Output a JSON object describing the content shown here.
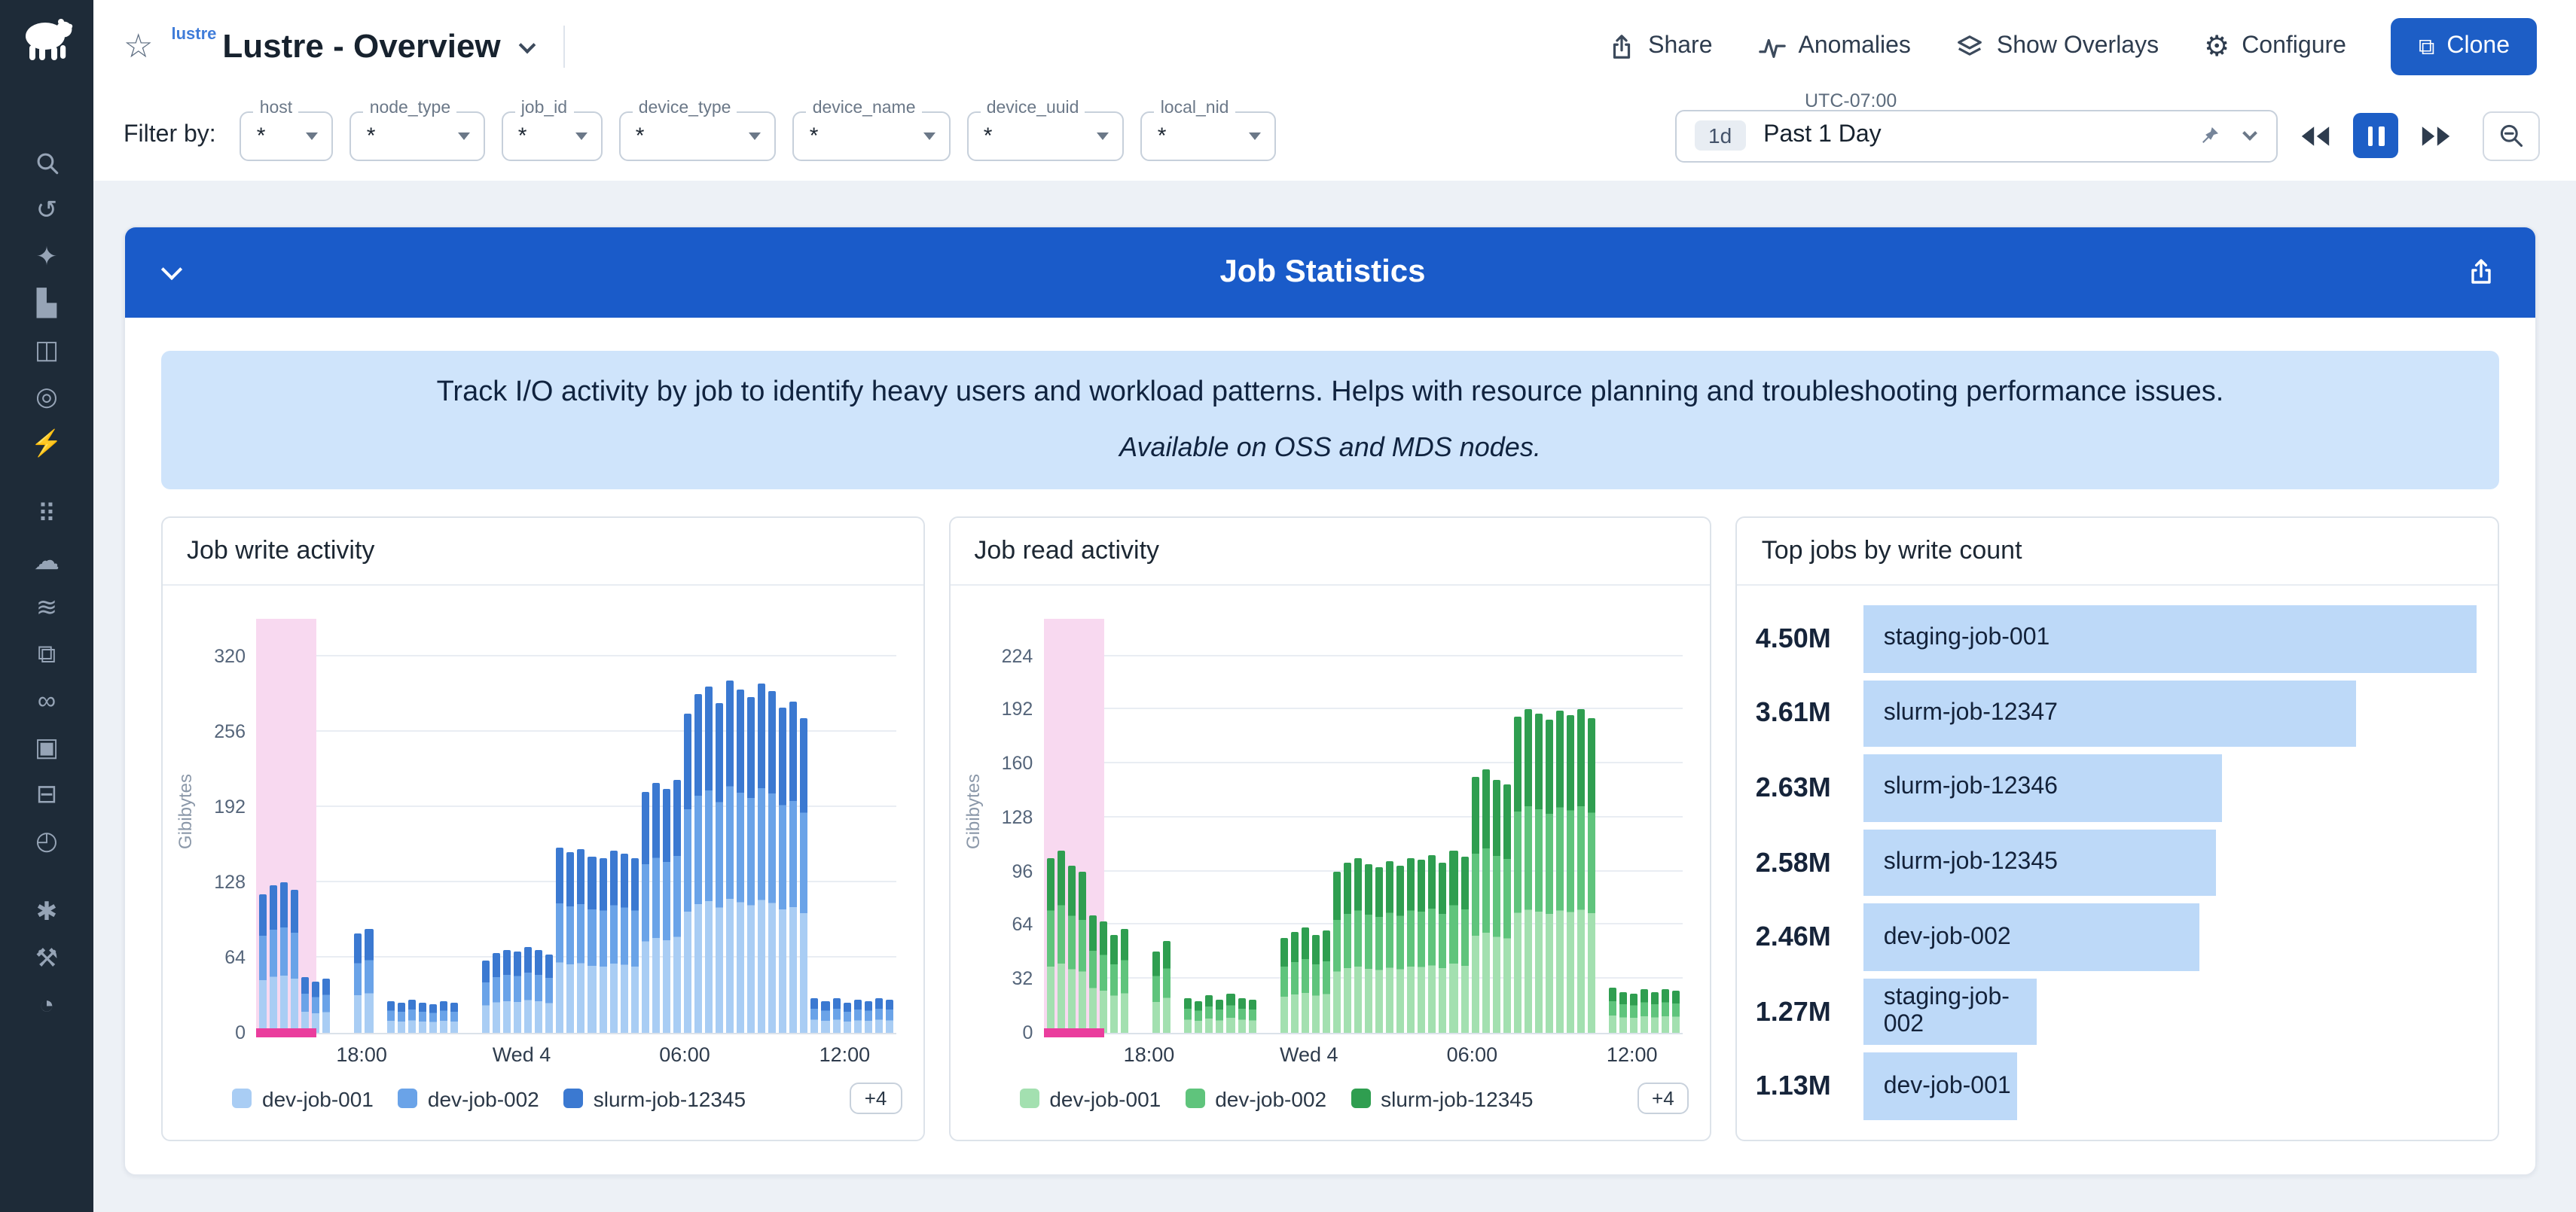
{
  "app": {
    "title": "Lustre - Overview",
    "collection": "lustre"
  },
  "icons": {
    "star": "☆",
    "gear": "⚙",
    "clone": "⧉"
  },
  "topbar": {
    "share": "Share",
    "anomalies": "Anomalies",
    "overlays": "Show Overlays",
    "configure": "Configure",
    "clone": "Clone"
  },
  "sidebar": {
    "icons": [
      {
        "name": "search-icon",
        "glyph": ""
      },
      {
        "name": "history-icon",
        "glyph": "↺"
      },
      {
        "name": "ai-sparkles-icon",
        "glyph": "✦"
      },
      {
        "name": "charts-icon",
        "glyph": "▙"
      },
      {
        "name": "dashboards-icon",
        "glyph": "◫"
      },
      {
        "name": "radar-icon",
        "glyph": "◎"
      },
      {
        "name": "alerts-icon",
        "glyph": "⚡"
      },
      {
        "name": "nodes-icon",
        "glyph": "⠿"
      },
      {
        "name": "cloud-icon",
        "glyph": "☁"
      },
      {
        "name": "streams-icon",
        "glyph": "≋"
      },
      {
        "name": "windows-icon",
        "glyph": "⧉"
      },
      {
        "name": "integrations-icon",
        "glyph": "∞"
      },
      {
        "name": "packages-icon",
        "glyph": "▣"
      },
      {
        "name": "database-icon",
        "glyph": "⊟"
      },
      {
        "name": "scheduler-icon",
        "glyph": "◴"
      },
      {
        "name": "bug-icon",
        "glyph": "✱"
      },
      {
        "name": "tools-icon",
        "glyph": "⚒"
      },
      {
        "name": "gauge-icon",
        "glyph": "◔"
      }
    ]
  },
  "filters": {
    "label": "Filter by:",
    "fields": [
      {
        "name": "host",
        "value": "*"
      },
      {
        "name": "node_type",
        "value": "*"
      },
      {
        "name": "job_id",
        "value": "*"
      },
      {
        "name": "device_type",
        "value": "*"
      },
      {
        "name": "device_name",
        "value": "*"
      },
      {
        "name": "device_uuid",
        "value": "*"
      },
      {
        "name": "local_nid",
        "value": "*"
      }
    ]
  },
  "timebar": {
    "timezone": "UTC-07:00",
    "badge": "1d",
    "label": "Past 1 Day"
  },
  "section": {
    "title": "Job Statistics",
    "description": "Track I/O activity by job to identify heavy users and workload patterns. Helps with resource planning and troubleshooting performance issues.",
    "note": "Available on OSS and MDS nodes."
  },
  "colors": {
    "accent": "#1d5ec6",
    "header": "#1a5bc9",
    "banner": "#cfe4fb"
  },
  "chart_data": [
    {
      "type": "bar",
      "title": "Job write activity",
      "ylabel": "Gibibytes",
      "ylim": [
        0,
        352
      ],
      "yticks": [
        0,
        64,
        128,
        192,
        256,
        320
      ],
      "xticks": [
        {
          "label": "18:00",
          "pos": 16.5
        },
        {
          "label": "Wed 4",
          "pos": 41.5
        },
        {
          "label": "06:00",
          "pos": 67
        },
        {
          "label": "12:00",
          "pos": 92
        }
      ],
      "series_legend": [
        "dev-job-001",
        "dev-job-002",
        "slurm-job-12345"
      ],
      "legend_overflow": "+4",
      "series_colors": [
        "#a9cdf4",
        "#6aa3e8",
        "#3b79d1"
      ],
      "highlight_band": {
        "start_pct": 0,
        "width_pct": 9.5,
        "color": "#f8d9f0",
        "edge_color": "#ea3d9d"
      },
      "values": [
        118,
        126,
        128,
        121,
        47,
        44,
        46,
        0,
        0,
        84,
        88,
        0,
        27,
        25,
        28,
        26,
        24,
        27,
        25,
        0,
        0,
        62,
        68,
        71,
        69,
        73,
        70,
        67,
        158,
        153,
        156,
        150,
        148,
        155,
        152,
        149,
        205,
        212,
        208,
        215,
        272,
        288,
        295,
        280,
        300,
        292,
        285,
        297,
        290,
        276,
        282,
        268,
        30,
        27,
        29,
        26,
        28,
        27,
        29,
        28
      ]
    },
    {
      "type": "bar",
      "title": "Job read activity",
      "ylabel": "Gibibytes",
      "ylim": [
        0,
        246
      ],
      "yticks": [
        0,
        32,
        64,
        96,
        128,
        160,
        192,
        224
      ],
      "xticks": [
        {
          "label": "18:00",
          "pos": 16.5
        },
        {
          "label": "Wed 4",
          "pos": 41.5
        },
        {
          "label": "06:00",
          "pos": 67
        },
        {
          "label": "12:00",
          "pos": 92
        }
      ],
      "series_legend": [
        "dev-job-001",
        "dev-job-002",
        "slurm-job-12345"
      ],
      "legend_overflow": "+4",
      "series_colors": [
        "#a3e0b0",
        "#5fc47c",
        "#2f9e50"
      ],
      "highlight_band": {
        "start_pct": 0,
        "width_pct": 9.5,
        "color": "#f8d9f0",
        "edge_color": "#ea3d9d"
      },
      "values": [
        104,
        108,
        99,
        96,
        70,
        66,
        58,
        62,
        0,
        0,
        48,
        55,
        0,
        21,
        19,
        22,
        20,
        23,
        21,
        20,
        0,
        0,
        56,
        60,
        63,
        58,
        61,
        96,
        101,
        104,
        100,
        98,
        102,
        99,
        104,
        103,
        106,
        101,
        108,
        105,
        152,
        157,
        150,
        148,
        188,
        192,
        190,
        186,
        191,
        189,
        192,
        187,
        0,
        27,
        24,
        23,
        26,
        24,
        26,
        25
      ]
    },
    {
      "type": "hbar",
      "title": "Top jobs by write count",
      "bar_color": "#bdd9f8",
      "rows": [
        {
          "display": "4.50M",
          "value": 4.5,
          "label": "staging-job-001"
        },
        {
          "display": "3.61M",
          "value": 3.61,
          "label": "slurm-job-12347"
        },
        {
          "display": "2.63M",
          "value": 2.63,
          "label": "slurm-job-12346"
        },
        {
          "display": "2.58M",
          "value": 2.58,
          "label": "slurm-job-12345"
        },
        {
          "display": "2.46M",
          "value": 2.46,
          "label": "dev-job-002"
        },
        {
          "display": "1.27M",
          "value": 1.27,
          "label": "staging-job-002"
        },
        {
          "display": "1.13M",
          "value": 1.13,
          "label": "dev-job-001"
        }
      ]
    }
  ]
}
